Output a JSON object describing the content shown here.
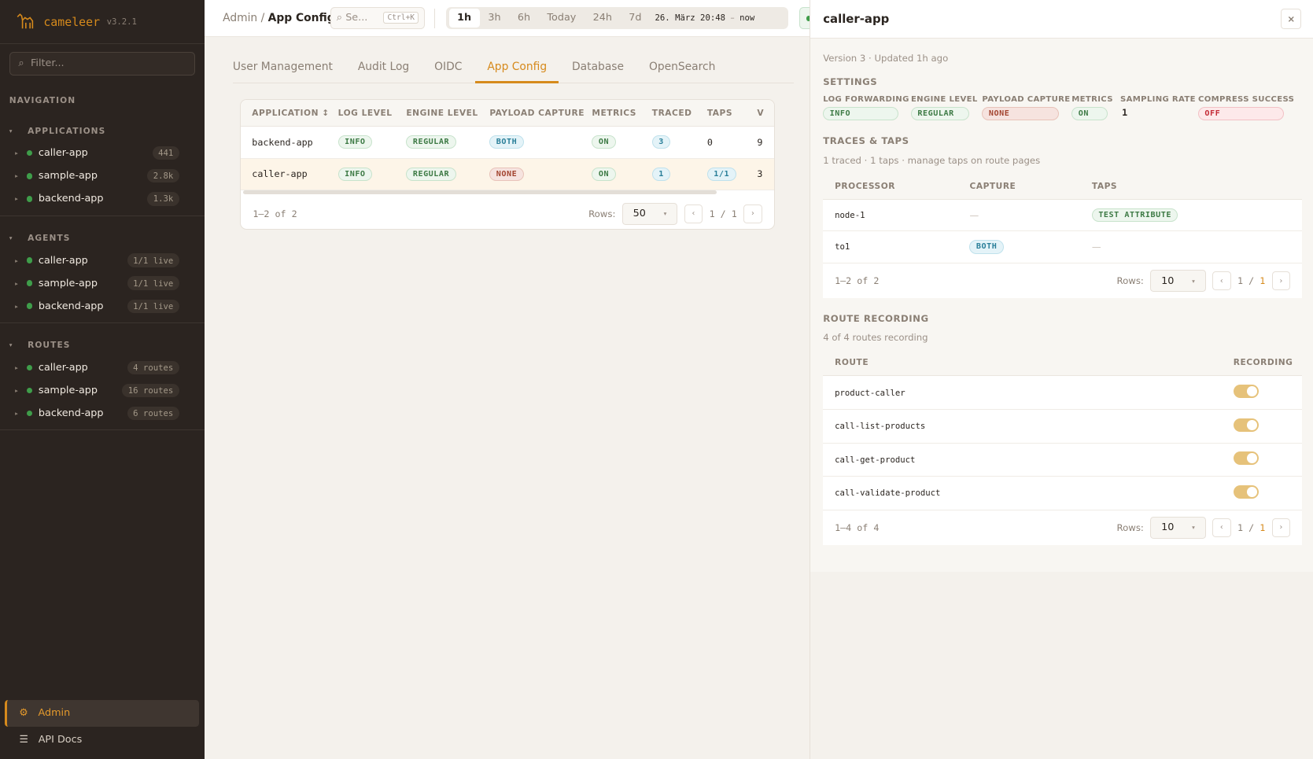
{
  "app": {
    "name": "cameleer",
    "version": "v3.2.1"
  },
  "sidebar": {
    "filter_placeholder": "Filter...",
    "nav_heading": "NAVIGATION",
    "groups": [
      {
        "label": "APPLICATIONS",
        "items": [
          {
            "label": "caller-app",
            "count": "441"
          },
          {
            "label": "sample-app",
            "count": "2.8k"
          },
          {
            "label": "backend-app",
            "count": "1.3k"
          }
        ]
      },
      {
        "label": "AGENTS",
        "items": [
          {
            "label": "caller-app",
            "count": "1/1 live"
          },
          {
            "label": "sample-app",
            "count": "1/1 live"
          },
          {
            "label": "backend-app",
            "count": "1/1 live"
          }
        ]
      },
      {
        "label": "ROUTES",
        "items": [
          {
            "label": "caller-app",
            "count": "4 routes"
          },
          {
            "label": "sample-app",
            "count": "16 routes"
          },
          {
            "label": "backend-app",
            "count": "6 routes"
          }
        ]
      }
    ],
    "admin": "Admin",
    "api_docs": "API Docs"
  },
  "header": {
    "breadcrumb": [
      "Admin",
      "/",
      "App Config"
    ],
    "search_placeholder": "Se...",
    "search_shortcut": "Ctrl+K",
    "time_ranges": [
      "1h",
      "3h",
      "6h",
      "Today",
      "24h",
      "7d"
    ],
    "active_range": "1h",
    "range_start": "26. März 20:48",
    "range_sep": "–",
    "range_end": "now"
  },
  "tabs": [
    "User Management",
    "Audit Log",
    "OIDC",
    "App Config",
    "Database",
    "OpenSearch"
  ],
  "active_tab": "App Config",
  "table": {
    "columns": [
      "APPLICATION ↕",
      "LOG LEVEL",
      "ENGINE LEVEL",
      "PAYLOAD CAPTURE",
      "METRICS",
      "TRACED",
      "TAPS",
      "V"
    ],
    "rows": [
      {
        "app": "backend-app",
        "log": "INFO",
        "engine": "REGULAR",
        "payload": "BOTH",
        "metrics": "ON",
        "traced": "3",
        "taps": "0",
        "v": "9"
      },
      {
        "app": "caller-app",
        "log": "INFO",
        "engine": "REGULAR",
        "payload": "NONE",
        "metrics": "ON",
        "traced": "1",
        "taps": "1/1",
        "v": "3"
      }
    ],
    "summary": "1–2 of 2",
    "rows_label": "Rows:",
    "rows_value": "50",
    "page": "1 / 1"
  },
  "panel": {
    "title": "caller-app",
    "close": "×",
    "meta": "Version 3 · Updated 1h ago",
    "settings_heading": "SETTINGS",
    "settings": [
      {
        "key": "LOG FORWARDING",
        "value": "INFO"
      },
      {
        "key": "ENGINE LEVEL",
        "value": "REGULAR"
      },
      {
        "key": "PAYLOAD CAPTURE",
        "value": "NONE"
      },
      {
        "key": "METRICS",
        "value": "ON"
      },
      {
        "key": "SAMPLING RATE",
        "value": "1"
      },
      {
        "key": "COMPRESS SUCCESS",
        "value": "OFF"
      }
    ],
    "traces_heading": "TRACES & TAPS",
    "traces_meta": "1 traced · 1 taps · manage taps on route pages",
    "traces_columns": [
      "PROCESSOR",
      "CAPTURE",
      "TAPS"
    ],
    "traces_rows": [
      {
        "processor": "node-1",
        "capture": "—",
        "taps": "TEST ATTRIBUTE"
      },
      {
        "processor": "to1",
        "capture": "BOTH",
        "taps": "—"
      }
    ],
    "traces_summary": "1–2 of 2",
    "rows_label": "Rows:",
    "rows_value": "10",
    "page_cur": "1",
    "page_sep": "/",
    "page_total": "1",
    "routes_heading": "ROUTE RECORDING",
    "routes_meta": "4 of 4 routes recording",
    "routes_columns": [
      "ROUTE",
      "RECORDING"
    ],
    "routes": [
      {
        "name": "product-caller",
        "recording": true
      },
      {
        "name": "call-list-products",
        "recording": true
      },
      {
        "name": "call-get-product",
        "recording": true
      },
      {
        "name": "call-validate-product",
        "recording": true
      }
    ],
    "routes_summary": "1–4 of 4"
  },
  "colors": {
    "accent": "#d68a1c",
    "sidebar": "#2b2420",
    "live": "#3f9d4a"
  }
}
